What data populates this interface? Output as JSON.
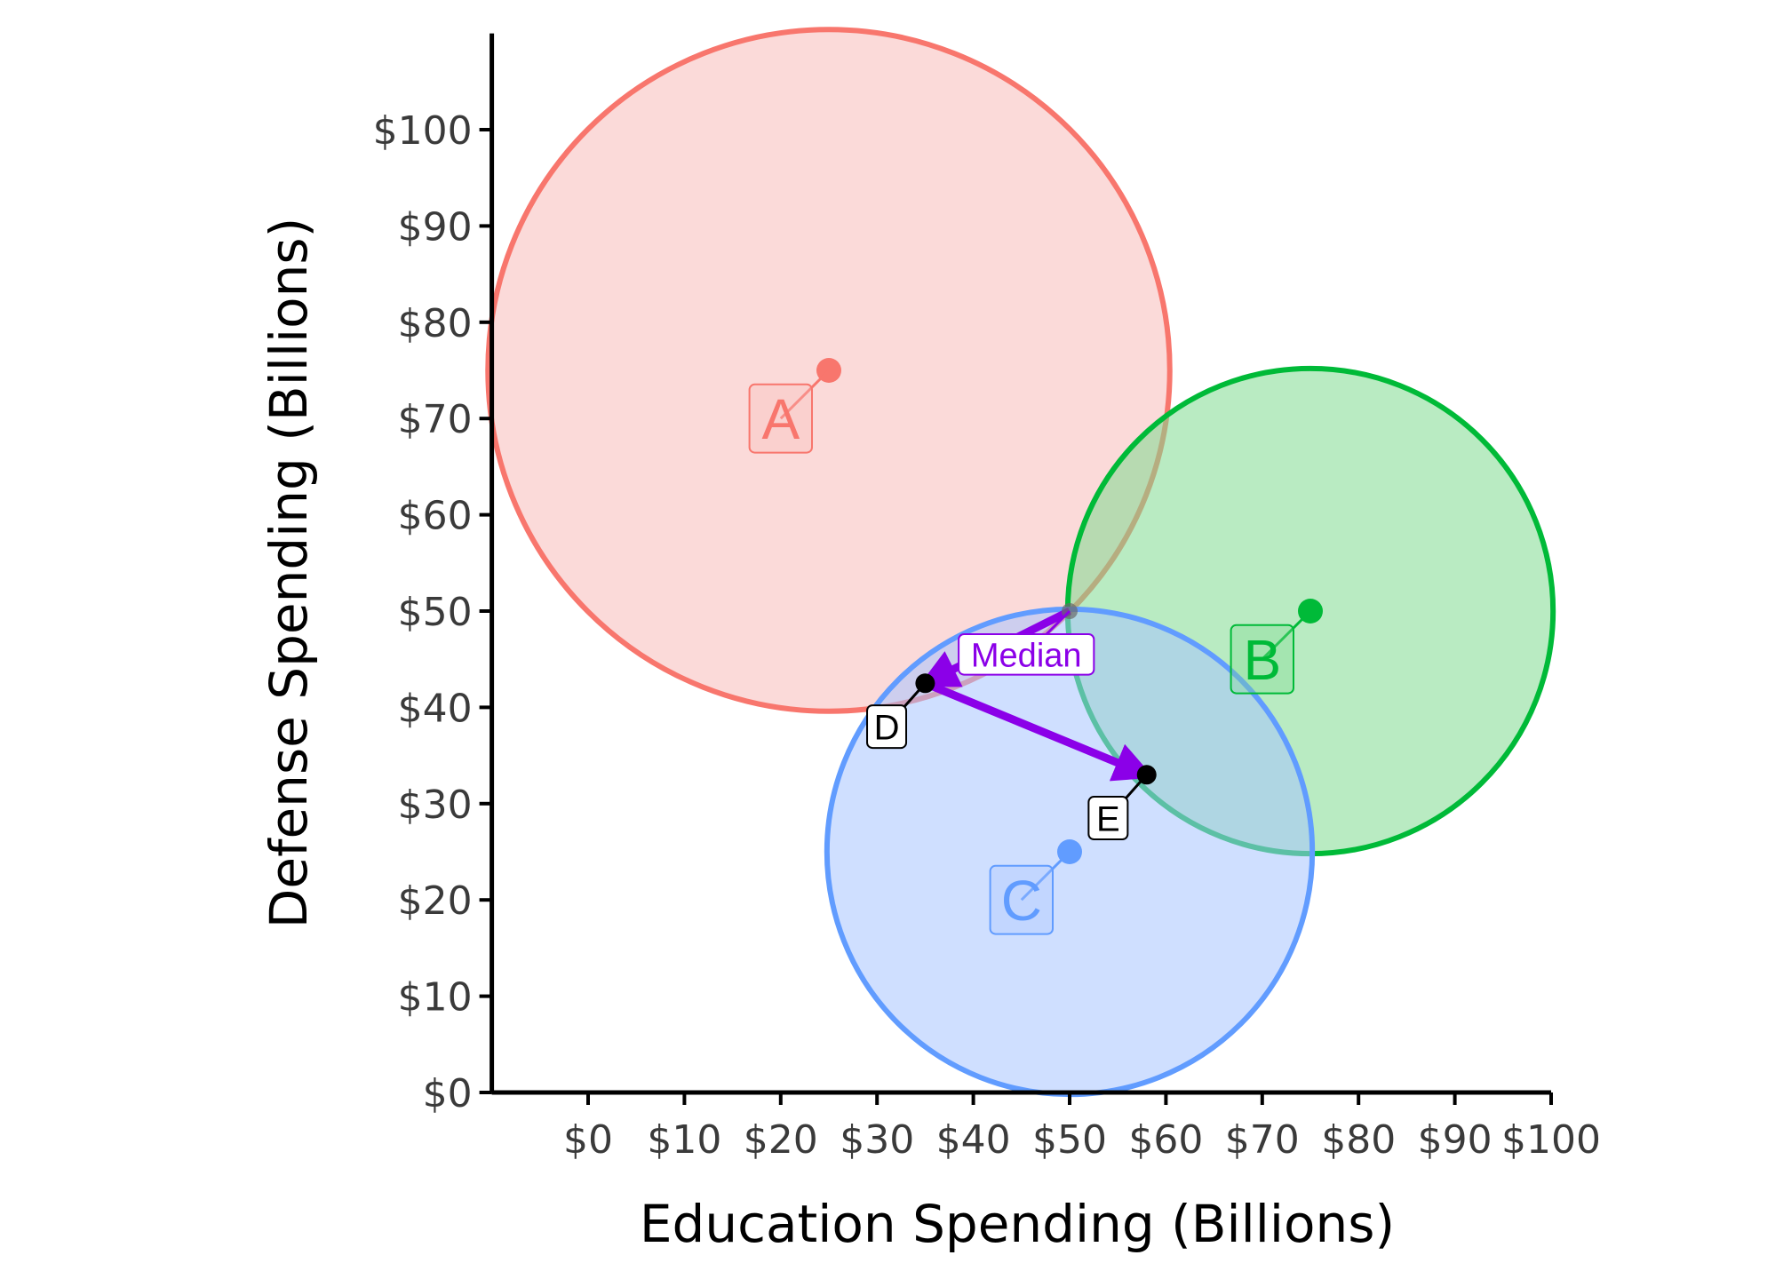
{
  "chart_data": {
    "type": "scatter",
    "xlabel": "Education Spending (Billions)",
    "ylabel": "Defense Spending (Billions)",
    "xlim": [
      -10,
      100
    ],
    "ylim": [
      0,
      110
    ],
    "x_ticks": [
      {
        "value": 0,
        "label": "$0"
      },
      {
        "value": 10,
        "label": "$10"
      },
      {
        "value": 20,
        "label": "$20"
      },
      {
        "value": 30,
        "label": "$30"
      },
      {
        "value": 40,
        "label": "$40"
      },
      {
        "value": 50,
        "label": "$50"
      },
      {
        "value": 60,
        "label": "$60"
      },
      {
        "value": 70,
        "label": "$70"
      },
      {
        "value": 80,
        "label": "$80"
      },
      {
        "value": 90,
        "label": "$90"
      },
      {
        "value": 100,
        "label": "$100"
      }
    ],
    "y_ticks": [
      {
        "value": 0,
        "label": "$0"
      },
      {
        "value": 10,
        "label": "$10"
      },
      {
        "value": 20,
        "label": "$20"
      },
      {
        "value": 30,
        "label": "$30"
      },
      {
        "value": 40,
        "label": "$40"
      },
      {
        "value": 50,
        "label": "$50"
      },
      {
        "value": 60,
        "label": "$60"
      },
      {
        "value": 70,
        "label": "$70"
      },
      {
        "value": 80,
        "label": "$80"
      },
      {
        "value": 90,
        "label": "$90"
      },
      {
        "value": 100,
        "label": "$100"
      }
    ],
    "grid": false,
    "legend": "none",
    "voters": [
      {
        "label": "A",
        "x": 25,
        "y": 75,
        "radius": 35.4,
        "color": "#F8766D",
        "fill": "#F8BCBA",
        "label_at": [
          20,
          70
        ]
      },
      {
        "label": "B",
        "x": 75,
        "y": 50,
        "radius": 25.2,
        "color": "#00BA38",
        "fill": "#7FDB8F",
        "label_at": [
          70,
          45
        ]
      },
      {
        "label": "C",
        "x": 50,
        "y": 25,
        "radius": 25.2,
        "color": "#619CFF",
        "fill": "#A8C5FF",
        "label_at": [
          45,
          20
        ]
      }
    ],
    "proposals": [
      {
        "label": "D",
        "x": 35,
        "y": 42.5,
        "label_at": [
          31,
          38
        ]
      },
      {
        "label": "E",
        "x": 58,
        "y": 33,
        "label_at": [
          54,
          28.5
        ]
      }
    ],
    "median": {
      "label": "Median",
      "x": 50,
      "y": 50,
      "label_at": [
        45.5,
        45.5
      ],
      "color": "#8B00E8"
    },
    "arrows": [
      {
        "from": [
          50,
          50
        ],
        "to": [
          35,
          42.5
        ],
        "color": "#8B00E8"
      },
      {
        "from": [
          35,
          42.5
        ],
        "to": [
          58,
          33
        ],
        "color": "#8B00E8"
      }
    ]
  }
}
